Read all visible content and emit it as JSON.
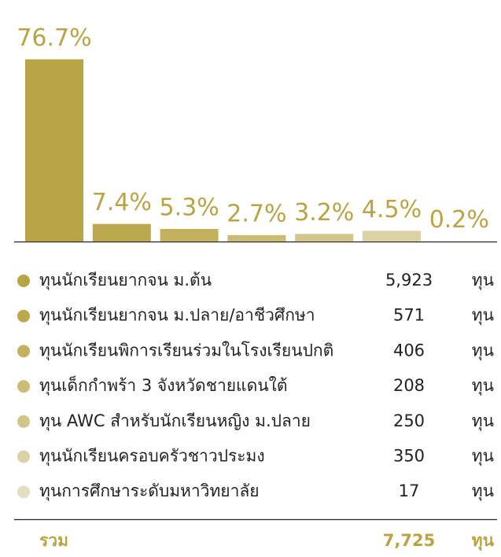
{
  "chart_data": {
    "type": "bar",
    "values": [
      76.7,
      7.4,
      5.3,
      2.7,
      3.2,
      4.5,
      0.2
    ],
    "value_labels": [
      "76.7%",
      "7.4%",
      "5.3%",
      "2.7%",
      "3.2%",
      "4.5%",
      "0.2%"
    ],
    "colors": [
      "#b8a444",
      "#bca94f",
      "#c3b160",
      "#cabb75",
      "#d1c589",
      "#dad1a6",
      "#e3ddc3"
    ]
  },
  "table": {
    "rows": [
      {
        "name": "ทุนนักเรียนยากจน ม.ต้น",
        "count": "5,923",
        "unit": "ทุน"
      },
      {
        "name": "ทุนนักเรียนยากจน ม.ปลาย/อาชีวศึกษา",
        "count": "571",
        "unit": "ทุน"
      },
      {
        "name": "ทุนนักเรียนพิการเรียนร่วมในโรงเรียนปกติ",
        "count": "406",
        "unit": "ทุน"
      },
      {
        "name": "ทุนเด็กกำพร้า 3 จังหวัดชายแดนใต้",
        "count": "208",
        "unit": "ทุน"
      },
      {
        "name": "ทุน AWC สำหรับนักเรียนหญิง ม.ปลาย",
        "count": "250",
        "unit": "ทุน"
      },
      {
        "name": "ทุนนักเรียนครอบครัวชาวประมง",
        "count": "350",
        "unit": "ทุน"
      },
      {
        "name": "ทุนการศึกษาระดับมหาวิทยาลัย",
        "count": "17",
        "unit": "ทุน"
      }
    ],
    "total": {
      "label": "รวม",
      "count": "7,725",
      "unit": "ทุน"
    }
  }
}
